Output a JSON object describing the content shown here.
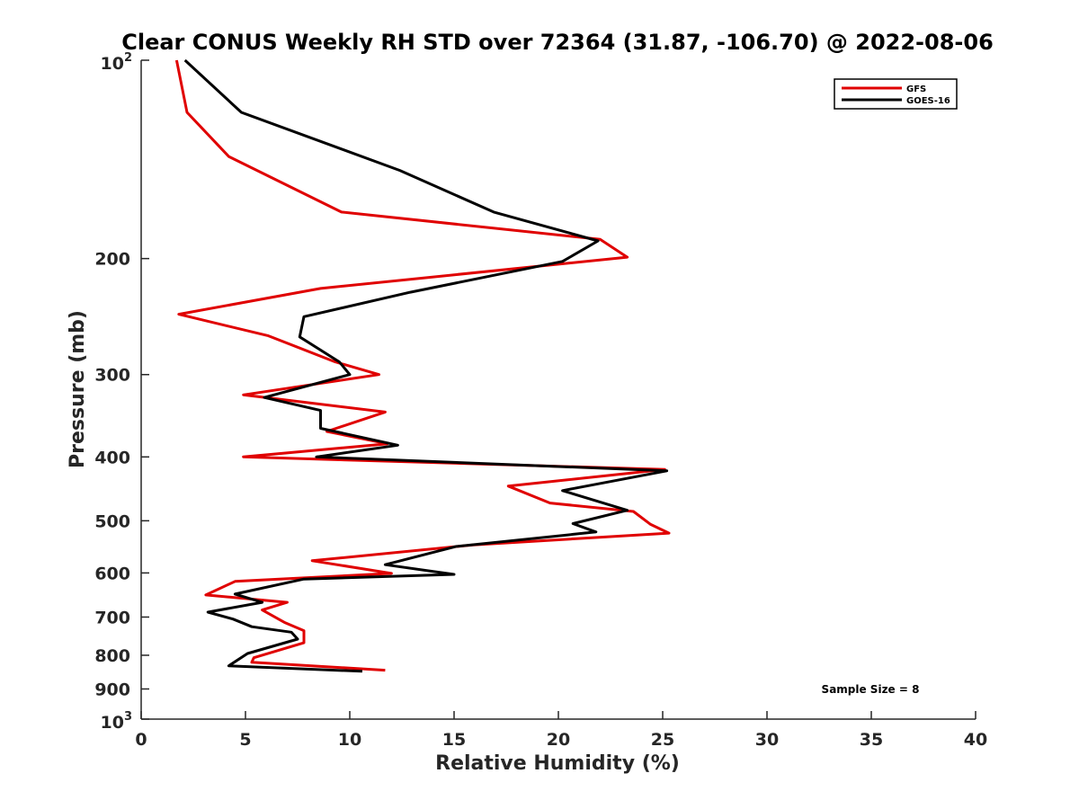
{
  "chart_data": {
    "type": "line",
    "title": "Clear CONUS Weekly RH STD over 72364 (31.87, -106.70) @ 2022-08-06",
    "xlabel": "Relative Humidity (%)",
    "ylabel": "Pressure (mb)",
    "xlim": [
      0,
      40
    ],
    "ylim": [
      100,
      1000
    ],
    "yscale": "log",
    "y_reversed": true,
    "grid": false,
    "legend_position": "top-right",
    "x_ticks": [
      0,
      5,
      10,
      15,
      20,
      25,
      30,
      35,
      40
    ],
    "x_tick_labels": [
      "0",
      "5",
      "10",
      "15",
      "20",
      "25",
      "30",
      "35",
      "40"
    ],
    "y_ticks": [
      100,
      200,
      300,
      400,
      500,
      600,
      700,
      800,
      900,
      1000
    ],
    "y_tick_labels": [
      {
        "base": "10",
        "exp": "2"
      },
      {
        "base": "200",
        "exp": ""
      },
      {
        "base": "300",
        "exp": ""
      },
      {
        "base": "400",
        "exp": ""
      },
      {
        "base": "500",
        "exp": ""
      },
      {
        "base": "600",
        "exp": ""
      },
      {
        "base": "700",
        "exp": ""
      },
      {
        "base": "800",
        "exp": ""
      },
      {
        "base": "900",
        "exp": ""
      },
      {
        "base": "10",
        "exp": "3"
      }
    ],
    "annotation": "Sample Size = 8",
    "series": [
      {
        "name": "GFS",
        "color": "#e00000",
        "points": [
          [
            1.7,
            100
          ],
          [
            2.2,
            120
          ],
          [
            4.2,
            140
          ],
          [
            9.6,
            170
          ],
          [
            22.0,
            187
          ],
          [
            23.3,
            199
          ],
          [
            8.6,
            222
          ],
          [
            1.8,
            243
          ],
          [
            6.1,
            262
          ],
          [
            9.3,
            287
          ],
          [
            11.4,
            300
          ],
          [
            4.9,
            322
          ],
          [
            11.7,
            342
          ],
          [
            8.9,
            366
          ],
          [
            11.8,
            382
          ],
          [
            4.9,
            400
          ],
          [
            25.1,
            418
          ],
          [
            17.6,
            443
          ],
          [
            19.6,
            470
          ],
          [
            23.6,
            484
          ],
          [
            24.4,
            506
          ],
          [
            25.3,
            522
          ],
          [
            15.9,
            544
          ],
          [
            8.2,
            575
          ],
          [
            12.0,
            601
          ],
          [
            4.5,
            618
          ],
          [
            3.1,
            648
          ],
          [
            7.0,
            665
          ],
          [
            5.8,
            683
          ],
          [
            6.9,
            714
          ],
          [
            7.8,
            734
          ],
          [
            7.8,
            766
          ],
          [
            5.4,
            807
          ],
          [
            5.3,
            820
          ],
          [
            11.7,
            843
          ]
        ]
      },
      {
        "name": "GOES-16",
        "color": "#000000",
        "points": [
          [
            2.1,
            100
          ],
          [
            4.8,
            120
          ],
          [
            12.4,
            147
          ],
          [
            16.9,
            170
          ],
          [
            21.9,
            188
          ],
          [
            20.2,
            202
          ],
          [
            12.9,
            225
          ],
          [
            7.8,
            245
          ],
          [
            7.6,
            263
          ],
          [
            9.5,
            287
          ],
          [
            10.0,
            300
          ],
          [
            5.9,
            325
          ],
          [
            8.6,
            340
          ],
          [
            8.6,
            362
          ],
          [
            12.3,
            384
          ],
          [
            8.4,
            400
          ],
          [
            25.2,
            420
          ],
          [
            20.2,
            450
          ],
          [
            23.3,
            482
          ],
          [
            20.7,
            505
          ],
          [
            21.8,
            520
          ],
          [
            15.1,
            547
          ],
          [
            11.7,
            583
          ],
          [
            15.0,
            603
          ],
          [
            7.8,
            613
          ],
          [
            4.5,
            646
          ],
          [
            5.8,
            665
          ],
          [
            3.2,
            688
          ],
          [
            4.4,
            705
          ],
          [
            5.3,
            724
          ],
          [
            7.2,
            738
          ],
          [
            7.5,
            756
          ],
          [
            5.1,
            795
          ],
          [
            4.2,
            830
          ],
          [
            10.6,
            846
          ]
        ]
      }
    ]
  }
}
